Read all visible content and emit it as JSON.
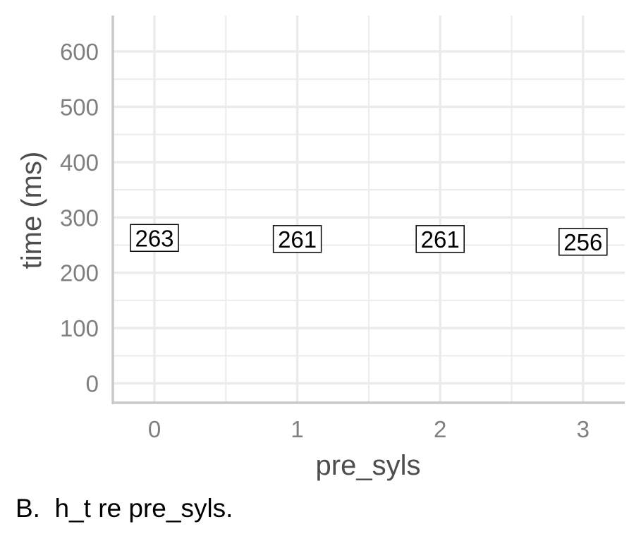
{
  "colors": {
    "grid": "#ebebeb",
    "axis_line": "#c8c8c8",
    "tick_text": "#7f7f7f",
    "axis_title": "#4d4d4d",
    "label_border": "#000000",
    "label_fill": "#ffffff"
  },
  "caption": "B.  h_t re pre_syls.",
  "chart_data": {
    "type": "scatter",
    "title": "",
    "xlabel": "pre_syls",
    "ylabel": "time (ms)",
    "x_categories": [
      "0",
      "1",
      "2",
      "3"
    ],
    "y_ticks": [
      0,
      100,
      200,
      300,
      400,
      500,
      600
    ],
    "ylim": [
      -35,
      665
    ],
    "grid": true,
    "minor_grid": true,
    "points": [
      {
        "x": "0",
        "y": 263,
        "label": "263"
      },
      {
        "x": "1",
        "y": 261,
        "label": "261"
      },
      {
        "x": "2",
        "y": 261,
        "label": "261"
      },
      {
        "x": "3",
        "y": 256,
        "label": "256"
      }
    ]
  }
}
